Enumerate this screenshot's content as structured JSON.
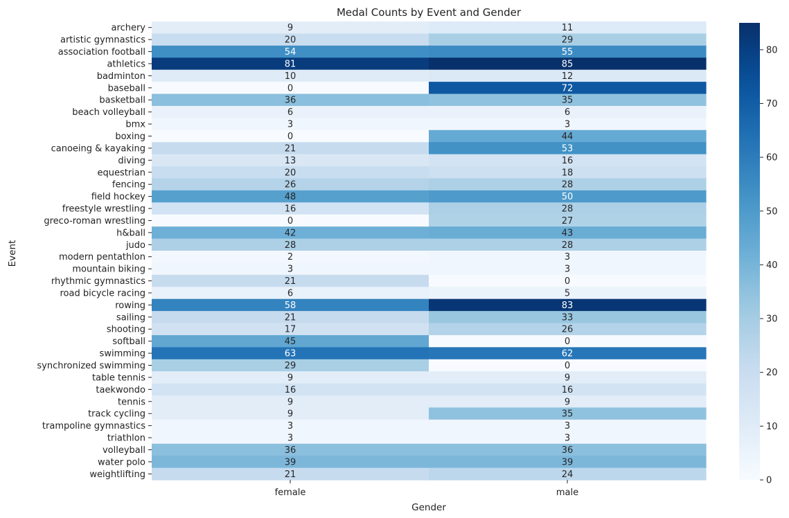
{
  "chart_data": {
    "type": "heatmap",
    "title": "Medal Counts by Event and Gender",
    "xlabel": "Gender",
    "ylabel": "Event",
    "columns": [
      "female",
      "male"
    ],
    "rows": [
      "archery",
      "artistic gymnastics",
      "association football",
      "athletics",
      "badminton",
      "baseball",
      "basketball",
      "beach volleyball",
      "bmx",
      "boxing",
      "canoeing & kayaking",
      "diving",
      "equestrian",
      "fencing",
      "field hockey",
      "freestyle wrestling",
      "greco-roman wrestling",
      "h&ball",
      "judo",
      "modern pentathlon",
      "mountain biking",
      "rhythmic gymnastics",
      "road bicycle racing",
      "rowing",
      "sailing",
      "shooting",
      "softball",
      "swimming",
      "synchronized swimming",
      "table tennis",
      "taekwondo",
      "tennis",
      "track cycling",
      "trampoline gymnastics",
      "triathlon",
      "volleyball",
      "water polo",
      "weightlifting"
    ],
    "values": [
      [
        9,
        11
      ],
      [
        20,
        29
      ],
      [
        54,
        55
      ],
      [
        81,
        85
      ],
      [
        10,
        12
      ],
      [
        0,
        72
      ],
      [
        36,
        35
      ],
      [
        6,
        6
      ],
      [
        3,
        3
      ],
      [
        0,
        44
      ],
      [
        21,
        53
      ],
      [
        13,
        16
      ],
      [
        20,
        18
      ],
      [
        26,
        28
      ],
      [
        48,
        50
      ],
      [
        16,
        28
      ],
      [
        0,
        27
      ],
      [
        42,
        43
      ],
      [
        28,
        28
      ],
      [
        2,
        3
      ],
      [
        3,
        3
      ],
      [
        21,
        0
      ],
      [
        6,
        5
      ],
      [
        58,
        83
      ],
      [
        21,
        33
      ],
      [
        17,
        26
      ],
      [
        45,
        0
      ],
      [
        63,
        62
      ],
      [
        29,
        0
      ],
      [
        9,
        9
      ],
      [
        16,
        16
      ],
      [
        9,
        9
      ],
      [
        9,
        35
      ],
      [
        3,
        3
      ],
      [
        3,
        3
      ],
      [
        36,
        36
      ],
      [
        39,
        39
      ],
      [
        21,
        24
      ]
    ],
    "colorscale": "Blues",
    "color_range": [
      0,
      85
    ],
    "colorbar_ticks": [
      0,
      10,
      20,
      30,
      40,
      50,
      60,
      70,
      80
    ],
    "grid": false,
    "annotations": "cell values shown in each cell"
  }
}
